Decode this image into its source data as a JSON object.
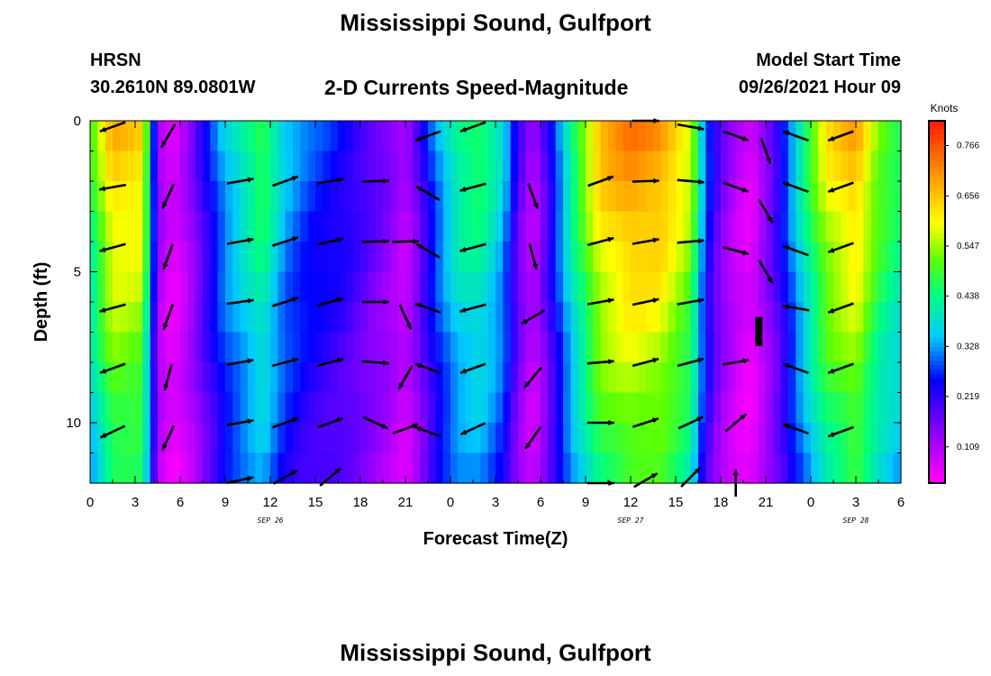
{
  "header": {
    "title": "Mississippi Sound, Gulfport",
    "station": "HRSN",
    "coordinates": "30.2610N  89.0801W",
    "subtitle": "2-D Currents Speed-Magnitude",
    "model_start_label": "Model Start Time",
    "model_start_value": "09/26/2021 Hour 09"
  },
  "footer": {
    "title": "Mississippi Sound, Gulfport"
  },
  "chart_data": {
    "type": "heatmap",
    "title": "2-D Currents Speed-Magnitude",
    "xlabel": "Forecast Time(Z)",
    "ylabel": "Depth (ft)",
    "x_ticks": [
      "0",
      "3",
      "6",
      "9",
      "12",
      "15",
      "18",
      "21",
      "0",
      "3",
      "6",
      "9",
      "12",
      "15",
      "18",
      "21",
      "0",
      "3",
      "6"
    ],
    "date_labels": [
      {
        "text": "SEP 26",
        "hour": 12
      },
      {
        "text": "SEP 27",
        "hour": 36
      },
      {
        "text": "SEP 28",
        "hour": 51
      }
    ],
    "y_ticks": [
      "0",
      "5",
      "10"
    ],
    "ylim": [
      0,
      12
    ],
    "xlim_hours": [
      0,
      54
    ],
    "colorbar": {
      "unit": "Knots",
      "labels": [
        "0.766",
        "0.656",
        "0.547",
        "0.438",
        "0.328",
        "0.219",
        "0.109"
      ],
      "min": 0.03,
      "max": 0.82
    },
    "speed_profile_knots": [
      [
        0,
        0.48
      ],
      [
        0.5,
        0.55
      ],
      [
        1.5,
        0.68
      ],
      [
        3.5,
        0.66
      ],
      [
        4.2,
        0.3
      ],
      [
        4.7,
        0.12
      ],
      [
        5.5,
        0.06
      ],
      [
        6.5,
        0.12
      ],
      [
        7.5,
        0.22
      ],
      [
        9,
        0.36
      ],
      [
        11.5,
        0.5
      ],
      [
        13,
        0.36
      ],
      [
        14.5,
        0.3
      ],
      [
        17,
        0.25
      ],
      [
        20,
        0.15
      ],
      [
        21,
        0.1
      ],
      [
        22,
        0.2
      ],
      [
        23,
        0.32
      ],
      [
        24.5,
        0.45
      ],
      [
        26,
        0.48
      ],
      [
        27.5,
        0.38
      ],
      [
        28.5,
        0.2
      ],
      [
        29.5,
        0.1
      ],
      [
        30.5,
        0.22
      ],
      [
        32,
        0.45
      ],
      [
        34,
        0.68
      ],
      [
        36,
        0.74
      ],
      [
        38,
        0.72
      ],
      [
        40,
        0.6
      ],
      [
        41,
        0.3
      ],
      [
        42,
        0.17
      ],
      [
        43,
        0.1
      ],
      [
        44,
        0.06
      ],
      [
        45,
        0.15
      ],
      [
        46,
        0.25
      ],
      [
        47.5,
        0.45
      ],
      [
        49,
        0.62
      ],
      [
        51,
        0.7
      ],
      [
        52.5,
        0.55
      ],
      [
        54,
        0.48
      ]
    ],
    "vectors": [
      {
        "hour": 1.5,
        "depth": 0.2,
        "angle": 200
      },
      {
        "hour": 1.5,
        "depth": 2.2,
        "angle": 190
      },
      {
        "hour": 1.5,
        "depth": 4.2,
        "angle": 195
      },
      {
        "hour": 1.5,
        "depth": 6.2,
        "angle": 195
      },
      {
        "hour": 1.5,
        "depth": 8.2,
        "angle": 200
      },
      {
        "hour": 1.5,
        "depth": 10.3,
        "angle": 205
      },
      {
        "hour": 5.2,
        "depth": 0.5,
        "angle": 240
      },
      {
        "hour": 5.2,
        "depth": 2.5,
        "angle": 245
      },
      {
        "hour": 5.2,
        "depth": 4.5,
        "angle": 250
      },
      {
        "hour": 5.2,
        "depth": 6.5,
        "angle": 250
      },
      {
        "hour": 5.2,
        "depth": 8.5,
        "angle": 255
      },
      {
        "hour": 5.2,
        "depth": 10.5,
        "angle": 245
      },
      {
        "hour": 10,
        "depth": 2,
        "angle": 10
      },
      {
        "hour": 10,
        "depth": 4,
        "angle": 10
      },
      {
        "hour": 10,
        "depth": 6,
        "angle": 8
      },
      {
        "hour": 10,
        "depth": 8,
        "angle": 10
      },
      {
        "hour": 10,
        "depth": 10,
        "angle": 10
      },
      {
        "hour": 10,
        "depth": 11.9,
        "angle": 12
      },
      {
        "hour": 13,
        "depth": 2,
        "angle": 20
      },
      {
        "hour": 13,
        "depth": 4,
        "angle": 18
      },
      {
        "hour": 13,
        "depth": 6,
        "angle": 18
      },
      {
        "hour": 13,
        "depth": 8,
        "angle": 15
      },
      {
        "hour": 13,
        "depth": 10,
        "angle": 20
      },
      {
        "hour": 13,
        "depth": 11.8,
        "angle": 30
      },
      {
        "hour": 16,
        "depth": 2,
        "angle": 10
      },
      {
        "hour": 16,
        "depth": 4,
        "angle": 12
      },
      {
        "hour": 16,
        "depth": 6,
        "angle": 15
      },
      {
        "hour": 16,
        "depth": 8,
        "angle": 15
      },
      {
        "hour": 16,
        "depth": 10,
        "angle": 20
      },
      {
        "hour": 16,
        "depth": 11.8,
        "angle": 40
      },
      {
        "hour": 19,
        "depth": 2,
        "angle": 2
      },
      {
        "hour": 19,
        "depth": 4,
        "angle": 2
      },
      {
        "hour": 19,
        "depth": 6,
        "angle": 0
      },
      {
        "hour": 19,
        "depth": 8,
        "angle": -5
      },
      {
        "hour": 19,
        "depth": 10,
        "angle": -25
      },
      {
        "hour": 21,
        "depth": 4,
        "angle": 2
      },
      {
        "hour": 21,
        "depth": 6.5,
        "angle": -65
      },
      {
        "hour": 21,
        "depth": 8.5,
        "angle": -120
      },
      {
        "hour": 21,
        "depth": 10.2,
        "angle": 20
      },
      {
        "hour": 22.5,
        "depth": 0.5,
        "angle": -160
      },
      {
        "hour": 22.5,
        "depth": 2.4,
        "angle": 150
      },
      {
        "hour": 22.5,
        "depth": 4.3,
        "angle": 150
      },
      {
        "hour": 22.5,
        "depth": 6.2,
        "angle": 160
      },
      {
        "hour": 22.5,
        "depth": 8.2,
        "angle": 160
      },
      {
        "hour": 22.5,
        "depth": 10.3,
        "angle": 160
      },
      {
        "hour": 25.5,
        "depth": 0.2,
        "angle": 200
      },
      {
        "hour": 25.5,
        "depth": 2.2,
        "angle": 195
      },
      {
        "hour": 25.5,
        "depth": 4.2,
        "angle": 195
      },
      {
        "hour": 25.5,
        "depth": 6.2,
        "angle": 195
      },
      {
        "hour": 25.5,
        "depth": 8.2,
        "angle": 200
      },
      {
        "hour": 25.5,
        "depth": 10.2,
        "angle": 205
      },
      {
        "hour": 29.5,
        "depth": 2.5,
        "angle": 290
      },
      {
        "hour": 29.5,
        "depth": 4.5,
        "angle": 285
      },
      {
        "hour": 29.5,
        "depth": 6.5,
        "angle": 210
      },
      {
        "hour": 29.5,
        "depth": 8.5,
        "angle": 230
      },
      {
        "hour": 29.5,
        "depth": 10.5,
        "angle": 235
      },
      {
        "hour": 34,
        "depth": 2,
        "angle": 20
      },
      {
        "hour": 34,
        "depth": 4,
        "angle": 15
      },
      {
        "hour": 34,
        "depth": 6,
        "angle": 10
      },
      {
        "hour": 34,
        "depth": 8,
        "angle": 5
      },
      {
        "hour": 34,
        "depth": 10,
        "angle": 0
      },
      {
        "hour": 34,
        "depth": 12,
        "angle": 0
      },
      {
        "hour": 37,
        "depth": 0,
        "angle": 0
      },
      {
        "hour": 37,
        "depth": 2,
        "angle": 2
      },
      {
        "hour": 37,
        "depth": 4,
        "angle": 10
      },
      {
        "hour": 37,
        "depth": 6,
        "angle": 12
      },
      {
        "hour": 37,
        "depth": 8,
        "angle": 15
      },
      {
        "hour": 37,
        "depth": 10,
        "angle": 18
      },
      {
        "hour": 37,
        "depth": 11.9,
        "angle": 30
      },
      {
        "hour": 40,
        "depth": 0.2,
        "angle": -10
      },
      {
        "hour": 40,
        "depth": 2,
        "angle": -5
      },
      {
        "hour": 40,
        "depth": 4,
        "angle": 5
      },
      {
        "hour": 40,
        "depth": 6,
        "angle": 10
      },
      {
        "hour": 40,
        "depth": 8,
        "angle": 15
      },
      {
        "hour": 40,
        "depth": 10,
        "angle": 25
      },
      {
        "hour": 40,
        "depth": 11.8,
        "angle": 45
      },
      {
        "hour": 43,
        "depth": 0.5,
        "angle": -20
      },
      {
        "hour": 43,
        "depth": 2.2,
        "angle": -20
      },
      {
        "hour": 43,
        "depth": 4.3,
        "angle": -15
      },
      {
        "hour": 43,
        "depth": 8,
        "angle": 10
      },
      {
        "hour": 43,
        "depth": 10,
        "angle": 40
      },
      {
        "hour": 43,
        "depth": 12,
        "angle": 90
      },
      {
        "hour": 45,
        "depth": 1,
        "angle": -70
      },
      {
        "hour": 45,
        "depth": 3,
        "angle": -60
      },
      {
        "hour": 45,
        "depth": 5,
        "angle": -60
      },
      {
        "hour": 47,
        "depth": 0.5,
        "angle": 160
      },
      {
        "hour": 47,
        "depth": 2.2,
        "angle": 160
      },
      {
        "hour": 47,
        "depth": 4.3,
        "angle": 160
      },
      {
        "hour": 47,
        "depth": 6.2,
        "angle": 170
      },
      {
        "hour": 47,
        "depth": 8.2,
        "angle": 160
      },
      {
        "hour": 47,
        "depth": 10.2,
        "angle": 160
      },
      {
        "hour": 50,
        "depth": 0.5,
        "angle": 200
      },
      {
        "hour": 50,
        "depth": 2.2,
        "angle": 200
      },
      {
        "hour": 50,
        "depth": 4.2,
        "angle": 200
      },
      {
        "hour": 50,
        "depth": 6.2,
        "angle": 200
      },
      {
        "hour": 50,
        "depth": 8.2,
        "angle": 200
      },
      {
        "hour": 50,
        "depth": 10.3,
        "angle": 200
      }
    ]
  }
}
